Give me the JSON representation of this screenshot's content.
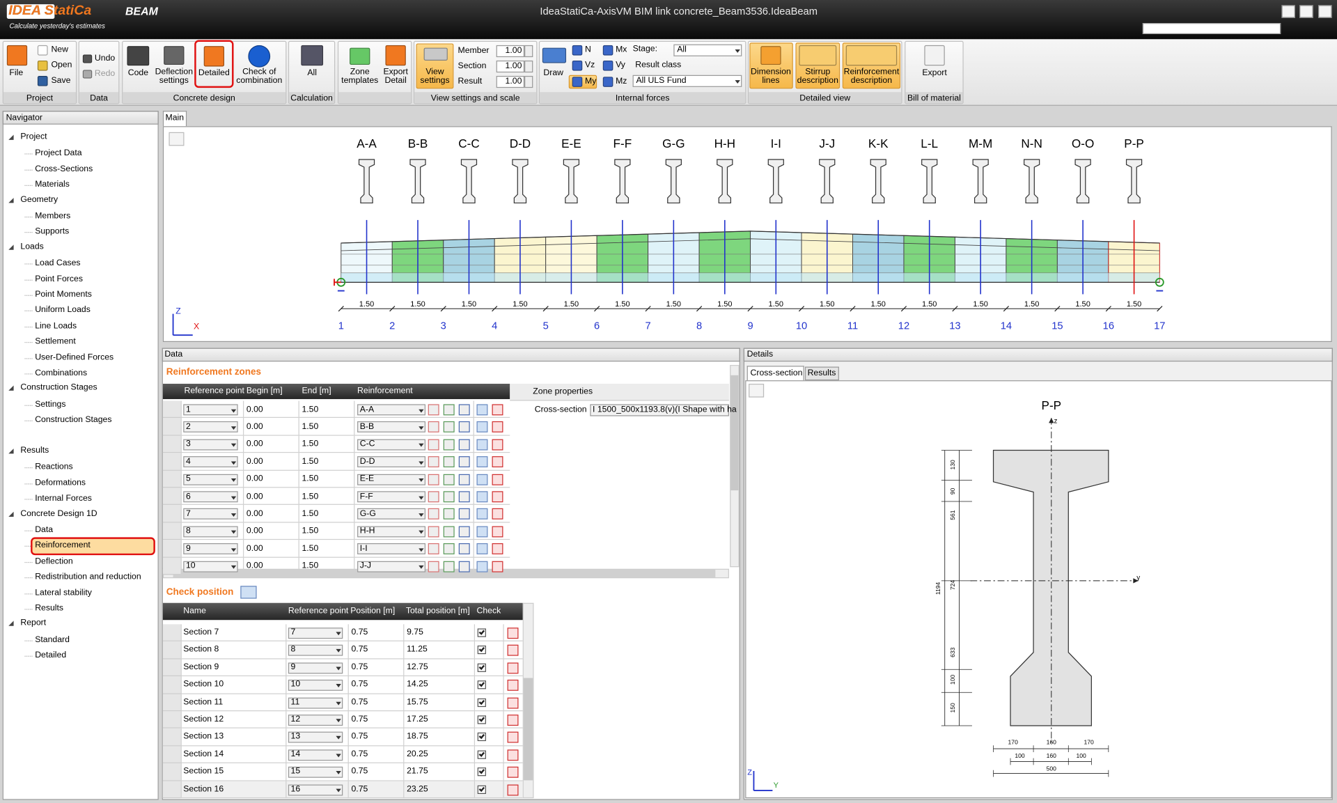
{
  "titlebar": {
    "logo": "IDEA StatiCa",
    "product": "BEAM",
    "tagline": "Calculate yesterday's estimates",
    "title": "IdeaStatiCa-AxisVM BIM link concrete_Beam3536.IdeaBeam"
  },
  "ribbon": {
    "group_labels": [
      "Project",
      "Data",
      "Concrete design",
      "Calculation",
      "View settings and scale",
      "Internal forces",
      "Detailed view",
      "Bill of material"
    ],
    "buttons": [
      "File",
      "New",
      "Open",
      "Save",
      "Undo",
      "Redo",
      "Code",
      "Deflection settings",
      "Detailed",
      "Check of combination",
      "All",
      "Zone templates",
      "Export Detail",
      "View settings",
      "Draw",
      "N",
      "Vz",
      "My",
      "Mx",
      "Vy",
      "Mz",
      "Dimension lines",
      "Stirrup description",
      "Reinforcement description",
      "Export"
    ],
    "scale_labels": [
      "Member",
      "Section",
      "Result"
    ],
    "scale_values": [
      "1.00",
      "1.00",
      "1.00"
    ],
    "stage_label": "Stage:",
    "stage": "All",
    "result_class_label": "Result class",
    "result_class": "All ULS Fund"
  },
  "navigator": {
    "title": "Navigator",
    "groups": [
      {
        "text": "Project",
        "children": [
          "Project Data",
          "Cross-Sections",
          "Materials"
        ]
      },
      {
        "text": "Geometry",
        "children": [
          "Members",
          "Supports"
        ]
      },
      {
        "text": "Loads",
        "children": [
          "Load Cases",
          "Point Forces",
          "Point Moments",
          "Uniform Loads",
          "Line Loads",
          "Settlement",
          "User-Defined Forces",
          "Combinations"
        ]
      },
      {
        "text": "Construction Stages",
        "children": [
          "Settings",
          "Construction Stages"
        ]
      },
      {
        "text": "Results",
        "children": [
          "Reactions",
          "Deformations",
          "Internal Forces"
        ]
      },
      {
        "text": "Concrete Design 1D",
        "children": [
          "Data",
          "Reinforcement",
          "Deflection",
          "Redistribution and reduction",
          "Lateral stability",
          "Results"
        ]
      },
      {
        "text": "Report",
        "children": [
          "Standard",
          "Detailed"
        ]
      }
    ]
  },
  "main": {
    "tab": "Main",
    "sections": [
      "A-A",
      "B-B",
      "C-C",
      "D-D",
      "E-E",
      "F-F",
      "G-G",
      "H-H",
      "I-I",
      "J-J",
      "K-K",
      "L-L",
      "M-M",
      "N-N",
      "O-O",
      "P-P"
    ],
    "spans": [
      "1.50",
      "1.50",
      "1.50",
      "1.50",
      "1.50",
      "1.50",
      "1.50",
      "1.50",
      "1.50",
      "1.50",
      "1.50",
      "1.50",
      "1.50",
      "1.50",
      "1.50",
      "1.50"
    ],
    "nodes": [
      1,
      2,
      3,
      4,
      5,
      6,
      7,
      8,
      9,
      10,
      11,
      12,
      13,
      14,
      15,
      16,
      17
    ],
    "axis": [
      "Z",
      "X"
    ]
  },
  "data_panel": {
    "title": "Data",
    "zones_title": "Reinforcement zones",
    "zones_headers": [
      "Reference point",
      "Begin [m]",
      "End [m]",
      "Reinforcement"
    ],
    "zones_rows": [
      [
        "1",
        "0.00",
        "1.50",
        "A-A"
      ],
      [
        "2",
        "0.00",
        "1.50",
        "B-B"
      ],
      [
        "3",
        "0.00",
        "1.50",
        "C-C"
      ],
      [
        "4",
        "0.00",
        "1.50",
        "D-D"
      ],
      [
        "5",
        "0.00",
        "1.50",
        "E-E"
      ],
      [
        "6",
        "0.00",
        "1.50",
        "F-F"
      ],
      [
        "7",
        "0.00",
        "1.50",
        "G-G"
      ],
      [
        "8",
        "0.00",
        "1.50",
        "H-H"
      ],
      [
        "9",
        "0.00",
        "1.50",
        "I-I"
      ],
      [
        "10",
        "0.00",
        "1.50",
        "J-J"
      ]
    ],
    "zone_properties": "Zone properties",
    "cross_section_label": "Cross-section",
    "cross_section_value": "I 1500_500x1193.8(v)(I Shape with ha",
    "check_title": "Check position",
    "check_headers": [
      "Name",
      "Reference point",
      "Position [m]",
      "Total position [m]",
      "Check"
    ],
    "check_rows": [
      [
        "Section 7",
        "7",
        "0.75",
        "9.75"
      ],
      [
        "Section 8",
        "8",
        "0.75",
        "11.25"
      ],
      [
        "Section 9",
        "9",
        "0.75",
        "12.75"
      ],
      [
        "Section 10",
        "10",
        "0.75",
        "14.25"
      ],
      [
        "Section 11",
        "11",
        "0.75",
        "15.75"
      ],
      [
        "Section 12",
        "12",
        "0.75",
        "17.25"
      ],
      [
        "Section 13",
        "13",
        "0.75",
        "18.75"
      ],
      [
        "Section 14",
        "14",
        "0.75",
        "20.25"
      ],
      [
        "Section 15",
        "15",
        "0.75",
        "21.75"
      ],
      [
        "Section 16",
        "16",
        "0.75",
        "23.25"
      ]
    ]
  },
  "details": {
    "title": "Details",
    "tabs": [
      "Cross-section",
      "Results"
    ],
    "section": "P-P",
    "section_axes": [
      "z",
      "y"
    ],
    "dims_vertical": [
      "130",
      "90",
      "561",
      "724",
      "633",
      "100",
      "150"
    ],
    "dim_total": "1194",
    "dims_bottom": [
      "170",
      "160",
      "170",
      "100",
      "160",
      "100",
      "500"
    ],
    "axis": [
      "Z",
      "Y"
    ]
  }
}
